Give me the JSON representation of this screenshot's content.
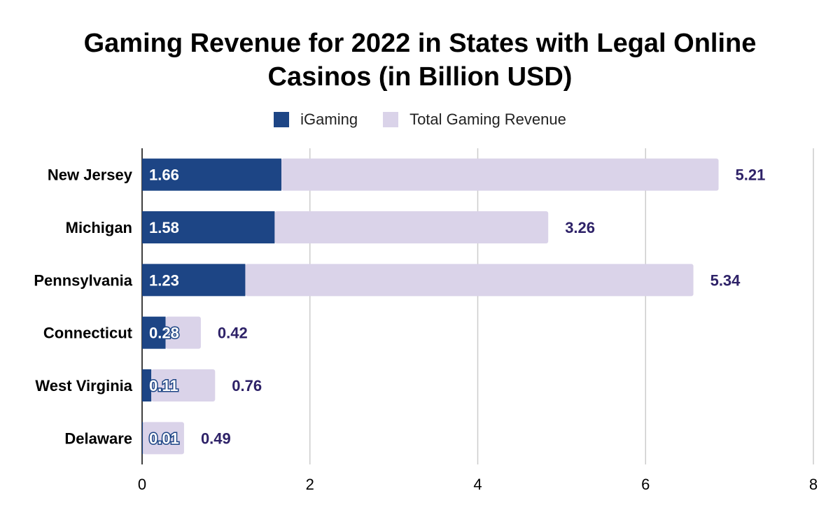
{
  "chart_data": {
    "type": "bar",
    "orientation": "horizontal",
    "stacked": true,
    "title": "Gaming Revenue for 2022 in States with Legal Online Casinos (in Billion USD)",
    "title_lines": [
      "Gaming Revenue for 2022 in States with Legal Online",
      "Casinos (in Billion USD)"
    ],
    "categories": [
      "New Jersey",
      "Michigan",
      "Pennsylvania",
      "Connecticut",
      "West Virginia",
      "Delaware"
    ],
    "series": [
      {
        "name": "iGaming",
        "color": "#1d4585",
        "values": [
          1.66,
          1.58,
          1.23,
          0.28,
          0.11,
          0.01
        ],
        "labels": [
          "1.66",
          "1.58",
          "1.23",
          "0.28",
          "0.11",
          "0.01"
        ]
      },
      {
        "name": "Total Gaming Revenue",
        "color": "#dad3e9",
        "values": [
          5.21,
          3.26,
          5.34,
          0.42,
          0.76,
          0.49
        ],
        "labels": [
          "5.21",
          "3.26",
          "5.34",
          "0.42",
          "0.76",
          "0.49"
        ]
      }
    ],
    "xlim": [
      0,
      8
    ],
    "xticks": [
      0,
      2,
      4,
      6,
      8
    ],
    "xtick_labels": [
      "0",
      "2",
      "4",
      "6",
      "8"
    ],
    "grid": "vertical",
    "legend_position": "top",
    "total_label_color": "#2e2268"
  }
}
